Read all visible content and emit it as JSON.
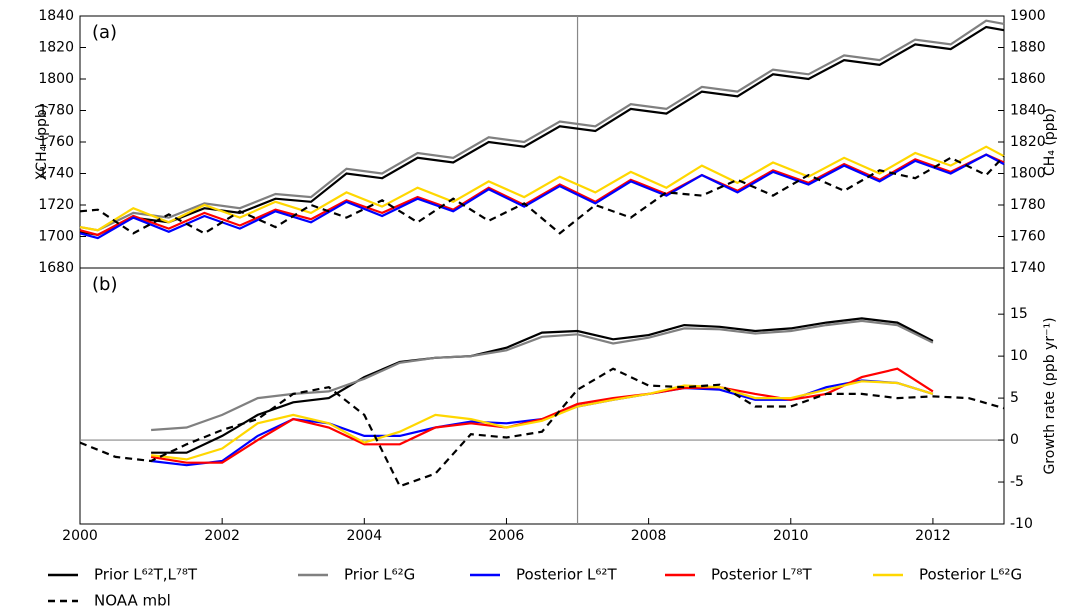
{
  "chart_data": [
    {
      "type": "line",
      "annotation": "(a)",
      "ylabel": "XCH₄ (ppb)",
      "y2label": "CH₄ (ppb)",
      "xlim": [
        2000,
        2013
      ],
      "ylim": [
        1680,
        1840
      ],
      "yticks": [
        1680,
        1700,
        1720,
        1740,
        1760,
        1780,
        1800,
        1820,
        1840
      ],
      "y2lim": [
        1740,
        1900
      ],
      "y2ticks": [
        1740,
        1760,
        1780,
        1800,
        1820,
        1840,
        1860,
        1880,
        1900
      ],
      "vline": 2007,
      "x": [
        2000,
        2000.25,
        2000.75,
        2001.25,
        2001.75,
        2002.25,
        2002.75,
        2003.25,
        2003.75,
        2004.25,
        2004.75,
        2005.25,
        2005.75,
        2006.25,
        2006.75,
        2007.25,
        2007.75,
        2008.25,
        2008.75,
        2009.25,
        2009.75,
        2010.25,
        2010.75,
        2011.25,
        2011.75,
        2012.25,
        2012.75,
        2013
      ],
      "series": [
        {
          "color": "#808080",
          "values": [
            1706,
            1704,
            1715,
            1712,
            1721,
            1718,
            1727,
            1725,
            1743,
            1740,
            1753,
            1750,
            1763,
            1760,
            1773,
            1770,
            1784,
            1781,
            1795,
            1792,
            1806,
            1803,
            1815,
            1812,
            1825,
            1822,
            1837,
            1835
          ]
        },
        {
          "color": "#000000",
          "values": [
            1703,
            1701,
            1712,
            1709,
            1718,
            1715,
            1724,
            1722,
            1740,
            1737,
            1750,
            1747,
            1760,
            1757,
            1770,
            1767,
            1781,
            1778,
            1792,
            1789,
            1803,
            1800,
            1812,
            1809,
            1822,
            1819,
            1833,
            1831
          ]
        },
        {
          "color": "#ffd700",
          "values": [
            1706,
            1704,
            1718,
            1709,
            1720,
            1712,
            1722,
            1715,
            1728,
            1719,
            1731,
            1722,
            1735,
            1725,
            1738,
            1728,
            1741,
            1731,
            1745,
            1734,
            1747,
            1738,
            1750,
            1740,
            1753,
            1745,
            1757,
            1751
          ]
        },
        {
          "color": "#ff0000",
          "values": [
            1704,
            1701,
            1713,
            1705,
            1715,
            1707,
            1717,
            1711,
            1723,
            1715,
            1725,
            1717,
            1731,
            1720,
            1733,
            1722,
            1736,
            1727,
            1739,
            1729,
            1742,
            1734,
            1746,
            1736,
            1749,
            1741,
            1752,
            1747
          ]
        },
        {
          "color": "#0000ff",
          "values": [
            1702,
            1699,
            1712,
            1703,
            1713,
            1705,
            1716,
            1709,
            1722,
            1713,
            1724,
            1716,
            1730,
            1719,
            1732,
            1721,
            1735,
            1726,
            1739,
            1728,
            1741,
            1733,
            1745,
            1735,
            1748,
            1740,
            1752,
            1746
          ]
        },
        {
          "color": "#000000",
          "dash": true,
          "axis": "y2",
          "values": [
            1776,
            1777,
            1762,
            1774,
            1762,
            1776,
            1766,
            1780,
            1772,
            1783,
            1769,
            1784,
            1770,
            1781,
            1762,
            1780,
            1772,
            1788,
            1786,
            1796,
            1786,
            1799,
            1789,
            1802,
            1797,
            1810,
            1799,
            1811
          ]
        }
      ]
    },
    {
      "type": "line",
      "annotation": "(b)",
      "y2label": "Growth rate (ppb yr⁻¹)",
      "xlim": [
        2000,
        2013
      ],
      "xticks": [
        2000,
        2002,
        2004,
        2006,
        2008,
        2010,
        2012
      ],
      "y2lim": [
        -10,
        20.5
      ],
      "y2ticks": [
        -10,
        -5,
        0,
        5,
        10,
        15
      ],
      "vline": 2007,
      "hline": 0,
      "x": [
        2000,
        2000.5,
        2001,
        2001.5,
        2002,
        2002.5,
        2003,
        2003.5,
        2004,
        2004.5,
        2005,
        2005.5,
        2006,
        2006.5,
        2007,
        2007.5,
        2008,
        2008.5,
        2009,
        2009.5,
        2010,
        2010.5,
        2011,
        2011.5,
        2012,
        2012.5,
        2013
      ],
      "series": [
        {
          "name": "Prior L⁶²T,L⁷⁸T",
          "color": "#000000",
          "axis": "y2",
          "values": [
            null,
            null,
            -1.5,
            -1.5,
            0.5,
            3,
            4.5,
            5,
            7.5,
            9.3,
            9.8,
            10,
            11,
            12.8,
            13,
            12,
            12.5,
            13.7,
            13.5,
            13,
            13.3,
            14,
            14.5,
            14,
            11.8,
            null,
            null
          ]
        },
        {
          "name": "Prior L⁶²G",
          "color": "#808080",
          "axis": "y2",
          "values": [
            null,
            null,
            1.2,
            1.5,
            3,
            5,
            5.5,
            5.8,
            7.3,
            9.2,
            9.8,
            10,
            10.7,
            12.3,
            12.6,
            11.5,
            12.2,
            13.3,
            13.2,
            12.7,
            13,
            13.7,
            14.2,
            13.7,
            11.6,
            null,
            null
          ]
        },
        {
          "name": "Posterior L⁶²T",
          "color": "#0000ff",
          "axis": "y2",
          "values": [
            null,
            null,
            -2.5,
            -3,
            -2.5,
            0.5,
            2.5,
            2,
            0.5,
            0.5,
            1.5,
            2.2,
            2,
            2.5,
            4,
            4.8,
            5.5,
            6.2,
            6,
            4.8,
            4.8,
            6.3,
            7.1,
            6.8,
            5.5,
            null,
            null
          ]
        },
        {
          "name": "Posterior L⁷⁸T",
          "color": "#ff0000",
          "axis": "y2",
          "values": [
            null,
            null,
            -2,
            -2.7,
            -2.7,
            0,
            2.5,
            1.5,
            -0.5,
            -0.5,
            1.5,
            2,
            1.5,
            2.5,
            4.3,
            5,
            5.5,
            6.2,
            6.3,
            5.5,
            4.8,
            5.5,
            7.5,
            8.5,
            5.8,
            null,
            null
          ]
        },
        {
          "name": "Posterior L⁶²G",
          "color": "#ffd700",
          "axis": "y2",
          "values": [
            null,
            null,
            -1.8,
            -2.3,
            -1,
            2,
            3,
            2,
            -0.3,
            1,
            3,
            2.5,
            1.5,
            2.3,
            4,
            4.8,
            5.5,
            6.5,
            6.3,
            5,
            5,
            6,
            7,
            6.8,
            5.5,
            null,
            null
          ]
        },
        {
          "name": "NOAA mbl",
          "color": "#000000",
          "dash": true,
          "axis": "y2",
          "values": [
            -0.3,
            -2,
            -2.5,
            -0.5,
            1.2,
            2.5,
            5.5,
            6.3,
            3,
            -5.5,
            -4,
            0.7,
            0.3,
            1,
            6,
            8.5,
            6.5,
            6.3,
            6.6,
            4,
            4,
            5.5,
            5.5,
            5,
            5.2,
            5,
            3.8
          ]
        }
      ]
    }
  ]
}
